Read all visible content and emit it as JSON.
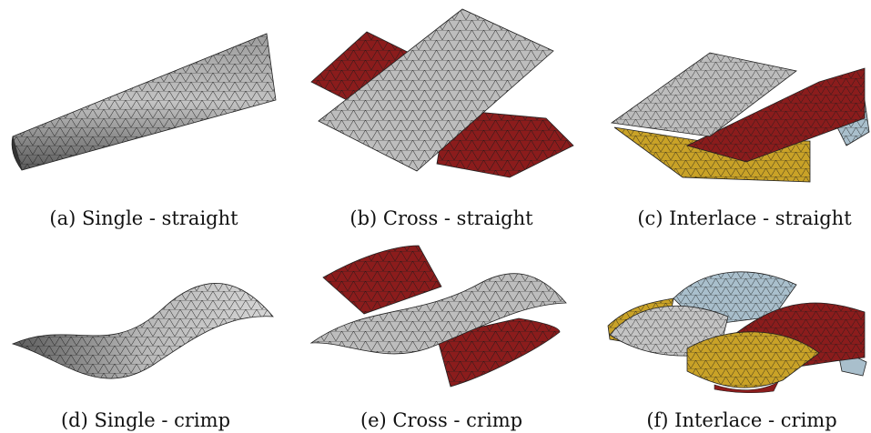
{
  "figure": {
    "panels": [
      {
        "id": "a",
        "caption": "(a) Single - straight",
        "icon": "single-straight-fiber-mesh"
      },
      {
        "id": "b",
        "caption": "(b) Cross - straight",
        "icon": "cross-straight-fiber-mesh"
      },
      {
        "id": "c",
        "caption": "(c) Interlace - straight",
        "icon": "interlace-straight-fiber-mesh"
      },
      {
        "id": "d",
        "caption": "(d) Single - crimp",
        "icon": "single-crimp-fiber-mesh"
      },
      {
        "id": "e",
        "caption": "(e) Cross - crimp",
        "icon": "cross-crimp-fiber-mesh"
      },
      {
        "id": "f",
        "caption": "(f) Interlace - crimp",
        "icon": "interlace-crimp-fiber-mesh"
      }
    ],
    "colors": {
      "gray": "#b9b9b9",
      "red": "#8b1c1c",
      "yellow": "#c9a227",
      "blue": "#a9bfcc",
      "mesh_line": "#1a1a1a"
    }
  }
}
